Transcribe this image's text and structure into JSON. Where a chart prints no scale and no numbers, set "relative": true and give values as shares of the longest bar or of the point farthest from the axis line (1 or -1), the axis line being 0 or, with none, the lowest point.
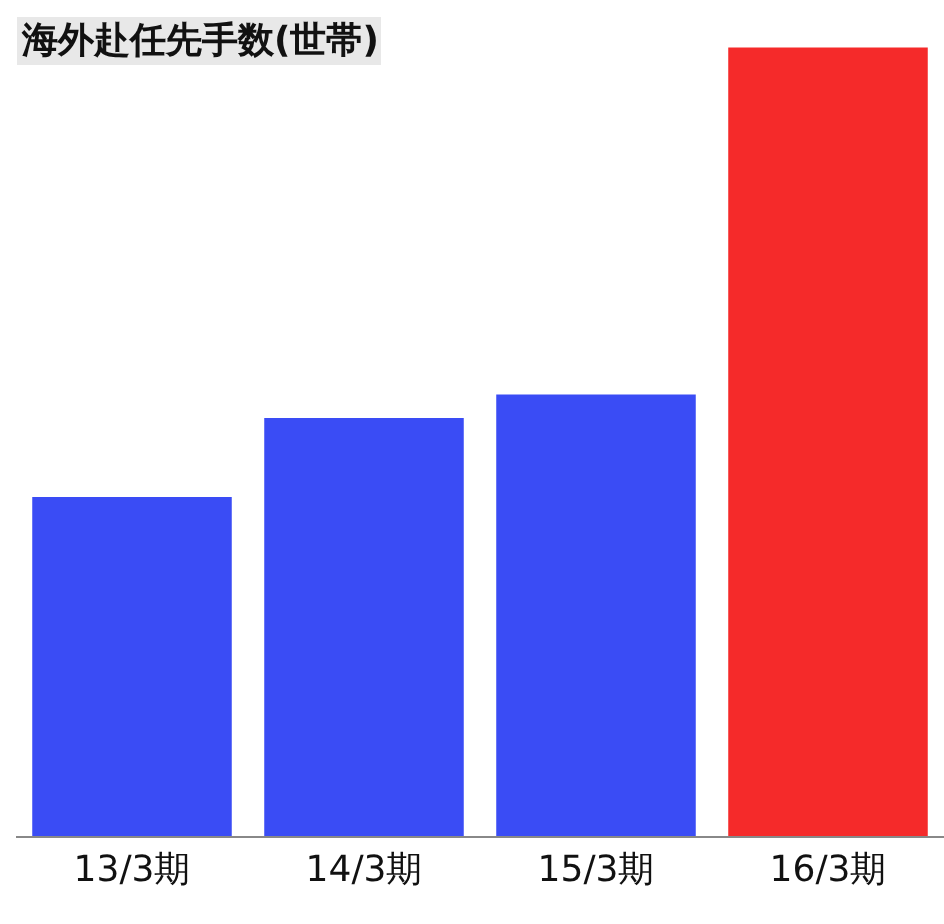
{
  "chart_data": {
    "type": "bar",
    "title": "海外赴任先手数(世帯)",
    "relative": true,
    "categories": [
      "13/3期",
      "14/3期",
      "15/3期",
      "16/3期"
    ],
    "values": [
      0.43,
      0.53,
      0.56,
      1
    ],
    "colors": [
      "#3a4cf5",
      "#3a4cf5",
      "#3a4cf5",
      "#f52a2a"
    ]
  }
}
